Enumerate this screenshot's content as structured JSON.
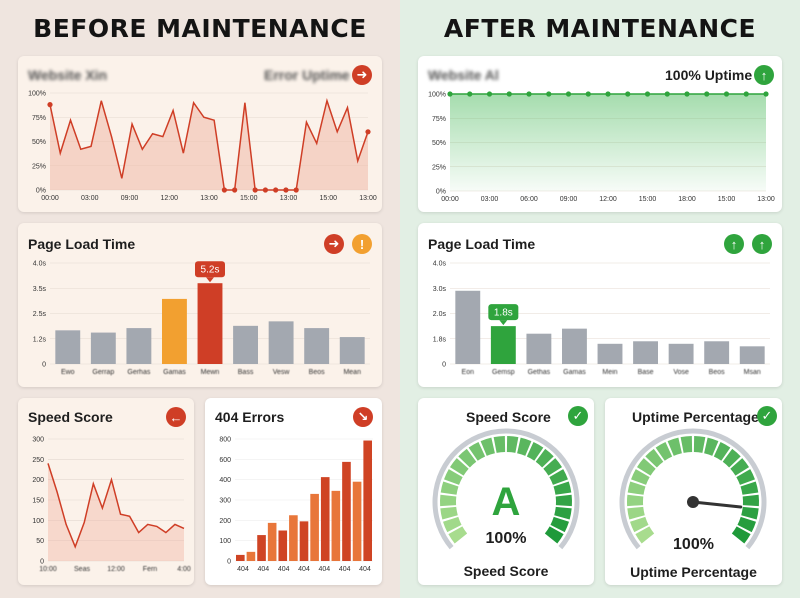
{
  "before": {
    "heading": "BEFORE MAINTENANCE",
    "uptime_card": {
      "title": "Website Xin",
      "subtitle": "Error Uptime",
      "icon": "arrow-right-icon",
      "y_ticks": [
        "100%",
        "75%",
        "50%",
        "25%",
        "0%"
      ],
      "x_ticks": [
        "00:00",
        "03:00",
        "09:00",
        "12:00",
        "13:00",
        "15:00",
        "13:00",
        "15:00",
        "13:00"
      ]
    },
    "load_card": {
      "title": "Page Load Time",
      "icons": [
        "arrow-right-icon",
        "warning-icon"
      ],
      "callout": "5.2s",
      "y_ticks": [
        "4.0s",
        "3.5s",
        "2.5s",
        "1.2s",
        "0"
      ],
      "x_ticks": [
        "Ewo",
        "Gerrap",
        "Gerhas",
        "Gamas",
        "Mewn",
        "Bass",
        "Vesw",
        "Beos",
        "Mean"
      ]
    },
    "speed_card": {
      "title": "Speed Score",
      "icon": "arrow-left-icon",
      "y_ticks": [
        "300",
        "250",
        "200",
        "150",
        "100",
        "50",
        "0"
      ],
      "x_ticks": [
        "10:00",
        "Seas",
        "12:00",
        "Fern",
        "4:00"
      ]
    },
    "errors_card": {
      "title": "404 Errors",
      "icon": "arrow-down-right-icon",
      "y_ticks": [
        "800",
        "600",
        "400",
        "300",
        "200",
        "100",
        "0"
      ],
      "x_ticks": [
        "404",
        "404",
        "404",
        "404",
        "404",
        "404",
        "404"
      ]
    }
  },
  "after": {
    "heading": "AFTER MAINTENANCE",
    "uptime_card": {
      "title": "Website Al",
      "subtitle": "100% Uptime",
      "icon": "arrow-up-icon",
      "y_ticks": [
        "100%",
        "75%",
        "50%",
        "25%",
        "0%"
      ],
      "x_ticks": [
        "00:00",
        "03:00",
        "06:00",
        "09:00",
        "12:00",
        "15:00",
        "18:00",
        "15:00",
        "13:00"
      ]
    },
    "load_card": {
      "title": "Page Load Time",
      "icons": [
        "arrow-up-icon",
        "arrow-up-icon"
      ],
      "callout": "1.8s",
      "y_ticks": [
        "4.0s",
        "3.0s",
        "2.0s",
        "1.8s",
        "0"
      ],
      "x_ticks": [
        "Eon",
        "Gemsp",
        "Gethas",
        "Gamas",
        "Mein",
        "Base",
        "Vose",
        "Beos",
        "Msan"
      ]
    },
    "speed_gauge": {
      "title": "Speed Score",
      "icon": "check-icon",
      "grade": "A",
      "value": "100%",
      "caption": "Speed Score"
    },
    "uptime_gauge": {
      "title": "Uptime Percentage",
      "icon": "check-icon",
      "value": "100%",
      "caption": "Uptime Percentage"
    }
  },
  "colors": {
    "red": "#cf3e26",
    "orange": "#f2a030",
    "green": "#2fa43d",
    "gray_bar": "#a3a8b0"
  },
  "chart_data": [
    {
      "type": "line",
      "panel": "before-uptime",
      "y_unit": "%",
      "ylim": [
        0,
        100
      ],
      "values": [
        88,
        38,
        72,
        42,
        45,
        92,
        55,
        12,
        68,
        42,
        58,
        55,
        82,
        38,
        90,
        75,
        72,
        0,
        0,
        90,
        0,
        0,
        0,
        0,
        0,
        70,
        48,
        92,
        60,
        85,
        30,
        60
      ]
    },
    {
      "type": "bar",
      "panel": "before-page-load",
      "ylim": [
        0,
        4.5
      ],
      "values": [
        1.5,
        1.4,
        1.6,
        2.9,
        3.6,
        1.7,
        1.9,
        1.6,
        1.2
      ],
      "highlight": {
        "3": "orange",
        "4": "red"
      }
    },
    {
      "type": "line",
      "panel": "before-speed-score",
      "ylim": [
        0,
        300
      ],
      "values": [
        240,
        170,
        90,
        35,
        95,
        190,
        130,
        200,
        115,
        110,
        70,
        90,
        85,
        70,
        90,
        80
      ]
    },
    {
      "type": "bar",
      "panel": "before-404-errors",
      "ylim": [
        0,
        800
      ],
      "values": [
        40,
        60,
        170,
        250,
        200,
        300,
        260,
        440,
        550,
        460,
        650,
        520,
        790
      ]
    },
    {
      "type": "area",
      "panel": "after-uptime",
      "ylim": [
        0,
        100
      ],
      "values": [
        100,
        100,
        100,
        100,
        100,
        100,
        100,
        100,
        100,
        100,
        100,
        100,
        100,
        100,
        100,
        100,
        100
      ]
    },
    {
      "type": "bar",
      "panel": "after-page-load",
      "ylim": [
        0,
        4.0
      ],
      "values": [
        2.9,
        1.5,
        1.2,
        1.4,
        0.8,
        0.9,
        0.8,
        0.9,
        0.7
      ],
      "highlight": {
        "1": "green"
      }
    }
  ]
}
